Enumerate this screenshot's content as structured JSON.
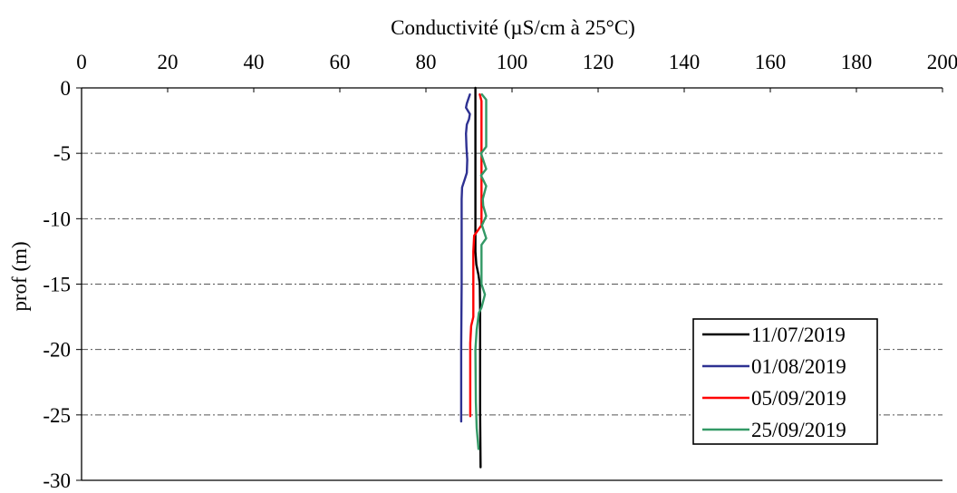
{
  "chart_data": {
    "type": "line",
    "title": "",
    "xlabel": "Conductivité (µS/cm à 25°C)",
    "ylabel": "prof (m)",
    "xlim": [
      0,
      200
    ],
    "ylim": [
      -30,
      0
    ],
    "x_ticks": [
      "0",
      "20",
      "40",
      "60",
      "80",
      "100",
      "120",
      "140",
      "160",
      "180",
      "200"
    ],
    "y_ticks": [
      "0",
      "-5",
      "-10",
      "-15",
      "-20",
      "-25",
      "-30"
    ],
    "x_axis_position": "top",
    "grid": "horizontal dash-dot",
    "legend_position": "bottom-right",
    "series": [
      {
        "name": "11/07/2019",
        "color": "#000000",
        "points": [
          [
            91.5,
            0
          ],
          [
            91.5,
            -2
          ],
          [
            91.5,
            -6
          ],
          [
            91.5,
            -8
          ],
          [
            91.5,
            -10
          ],
          [
            91.5,
            -11
          ],
          [
            91.5,
            -12.5
          ],
          [
            91.7,
            -13.5
          ],
          [
            92.2,
            -14.3
          ],
          [
            92.5,
            -15
          ],
          [
            92.6,
            -17
          ],
          [
            92.6,
            -20
          ],
          [
            92.6,
            -25
          ],
          [
            92.7,
            -29
          ]
        ]
      },
      {
        "name": "01/08/2019",
        "color": "#2e3192",
        "points": [
          [
            90.2,
            -0.5
          ],
          [
            89.5,
            -1.2
          ],
          [
            89.3,
            -1.5
          ],
          [
            90.2,
            -2.0
          ],
          [
            90.0,
            -2.4
          ],
          [
            89.5,
            -2.8
          ],
          [
            89.3,
            -3.5
          ],
          [
            89.4,
            -4.5
          ],
          [
            89.6,
            -5.5
          ],
          [
            89.5,
            -6.5
          ],
          [
            89.0,
            -7.0
          ],
          [
            88.4,
            -7.6
          ],
          [
            88.3,
            -8.5
          ],
          [
            88.3,
            -10
          ],
          [
            88.3,
            -15
          ],
          [
            88.2,
            -20
          ],
          [
            88.2,
            -25.5
          ]
        ]
      },
      {
        "name": "05/09/2019",
        "color": "#ff0000",
        "points": [
          [
            92.5,
            -0.5
          ],
          [
            92.9,
            -1.0
          ],
          [
            92.9,
            -3
          ],
          [
            92.9,
            -6
          ],
          [
            92.9,
            -8
          ],
          [
            92.9,
            -9.5
          ],
          [
            92.9,
            -10.5
          ],
          [
            91.2,
            -11.3
          ],
          [
            91.0,
            -12.5
          ],
          [
            91.0,
            -15
          ],
          [
            91.0,
            -17.5
          ],
          [
            90.5,
            -18.2
          ],
          [
            90.3,
            -19.5
          ],
          [
            90.3,
            -22
          ],
          [
            90.3,
            -25.1
          ]
        ]
      },
      {
        "name": "25/09/2019",
        "color": "#339966",
        "points": [
          [
            93.0,
            -0.5
          ],
          [
            94.0,
            -0.9
          ],
          [
            94.0,
            -3
          ],
          [
            94.0,
            -4.5
          ],
          [
            92.8,
            -5.0
          ],
          [
            94.0,
            -6.2
          ],
          [
            92.8,
            -6.7
          ],
          [
            94.0,
            -7.5
          ],
          [
            93.2,
            -8.5
          ],
          [
            93.3,
            -9.0
          ],
          [
            94.0,
            -9.8
          ],
          [
            93.0,
            -10.5
          ],
          [
            94.0,
            -11.5
          ],
          [
            92.9,
            -12.0
          ],
          [
            92.9,
            -13
          ],
          [
            92.9,
            -15
          ],
          [
            93.7,
            -15.8
          ],
          [
            92.9,
            -16.8
          ],
          [
            92.3,
            -17.2
          ],
          [
            91.8,
            -18.5
          ],
          [
            91.5,
            -20
          ],
          [
            91.6,
            -24
          ],
          [
            91.8,
            -26
          ],
          [
            92.2,
            -27.6
          ]
        ]
      }
    ]
  }
}
